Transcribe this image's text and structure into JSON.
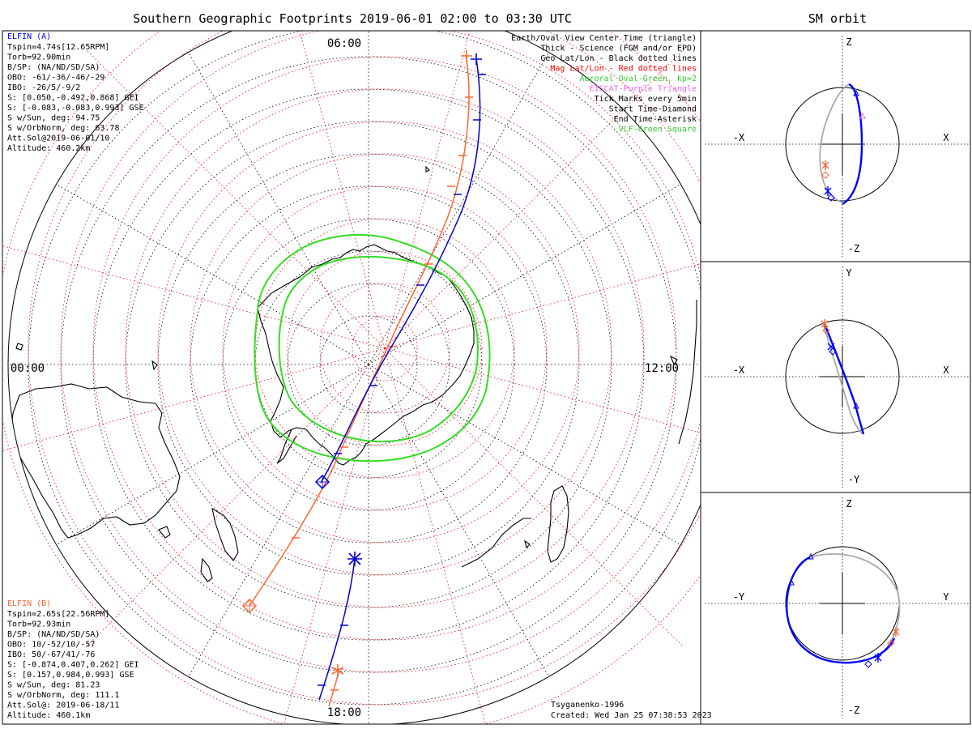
{
  "title": "Southern Geographic Footprints 2019-06-01 02:00 to 03:30 UTC",
  "side_title": "SM orbit",
  "time_labels": {
    "top": "06:00",
    "left": "00:00",
    "right": "12:00",
    "bottom": "18:00"
  },
  "legend": [
    {
      "text": "Earth/Oval View Center Time (triangle)",
      "color": "#000000"
    },
    {
      "text": "Thick - Science (FGM and/or EPD)",
      "color": "#000000"
    },
    {
      "text": "Geo Lat/Lon - Black dotted lines",
      "color": "#000000"
    },
    {
      "text": "Mag Lat/Lon - Red dotted lines",
      "color": "#ff0000"
    },
    {
      "text": "Auroral Oval-Green, kp=2",
      "color": "#33cc33"
    },
    {
      "text": "EISCAT-Purple Triangle",
      "color": "#ee66ee"
    },
    {
      "text": "Tick Marks every 5min",
      "color": "#000000"
    },
    {
      "text": "Start Time-Diamond",
      "color": "#000000"
    },
    {
      "text": "End Time-Asterisk",
      "color": "#000000"
    },
    {
      "text": "VLF-Green Square",
      "color": "#33cc33"
    }
  ],
  "elfin_a": {
    "name": "ELFIN (A)",
    "color": "#0000ff",
    "lines": [
      "Tspin=4.74s[12.65RPM]",
      "Torb=92.90min",
      "B/SP: (NA/ND/SD/SA)",
      "OBO: -61/-36/-46/-29",
      "IBO: -26/5/-9/2",
      "S: [0.050,-0.492,0.868] GEI",
      "S: [-0.083,-0.083,0.993] GSE",
      "S w/Sun, deg: 94.75",
      "S w/OrbNorm, deg: 63.78",
      "Att.Sol@2019-06-01/10",
      "Altitude: 460.2km"
    ]
  },
  "elfin_b": {
    "name": "ELFIN (B)",
    "color": "#ff6633",
    "lines": [
      "Tspin=2.65s[22.56RPM]",
      "Torb=92.93min",
      "B/SP: (NA/ND/SD/SA)",
      "OBO: 10/-52/10/-57",
      "IBO: 50/-67/41/-76",
      "S: [-0.874,0.407,0.262] GEI",
      "S: [0.157,0.984,0.993] GSE",
      "S w/Sun, deg: 81.23",
      "S w/OrbNorm, deg: 111.1",
      "Att.Sol@: 2019-06-18/11",
      "Altitude: 460.1km"
    ]
  },
  "credit": {
    "model": "Tsyganenko-1996",
    "created": "Created: Wed Jan 25 07:38:53 2023"
  },
  "orbit_panels": [
    {
      "name": "xz",
      "top": "Z",
      "bottom": "-Z",
      "left": "-X",
      "right": "X"
    },
    {
      "name": "xy",
      "top": "Y",
      "bottom": "-Y",
      "left": "-X",
      "right": "X"
    },
    {
      "name": "yz",
      "top": "Z",
      "bottom": "-Z",
      "left": "-Y",
      "right": "Y"
    }
  ],
  "colors": {
    "elfin_a": "#0000ff",
    "elfin_b": "#ff6633",
    "oval": "#33dd22",
    "grid_geo": "#000000",
    "grid_mag": "#ff0000",
    "orbit_gray": "#aaaaaa"
  }
}
